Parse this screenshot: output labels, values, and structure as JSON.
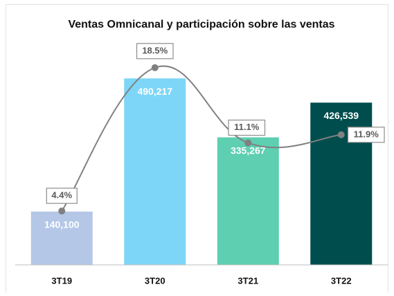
{
  "chart_data": {
    "type": "combo",
    "title": "Ventas Omnicanal y participación sobre las ventas",
    "categories": [
      "3T19",
      "3T20",
      "3T21",
      "3T22"
    ],
    "series": [
      {
        "type": "bar",
        "colors": [
          "#b4c7e7",
          "#7dd6f7",
          "#5ecfb1",
          "#004d4d"
        ],
        "values": [
          140100,
          490217,
          335267,
          426539
        ],
        "value_labels": [
          "140,100",
          "490,217",
          "335,267",
          "426,539"
        ]
      },
      {
        "type": "line",
        "axis": "y2",
        "color": "#808080",
        "values": [
          4.4,
          18.5,
          11.1,
          11.9
        ],
        "value_labels": [
          "4.4%",
          "18.5%",
          "11.1%",
          "11.9%"
        ]
      }
    ],
    "ylim": [
      0,
      620000
    ],
    "y2lim": [
      -0.9,
      22.3
    ]
  }
}
